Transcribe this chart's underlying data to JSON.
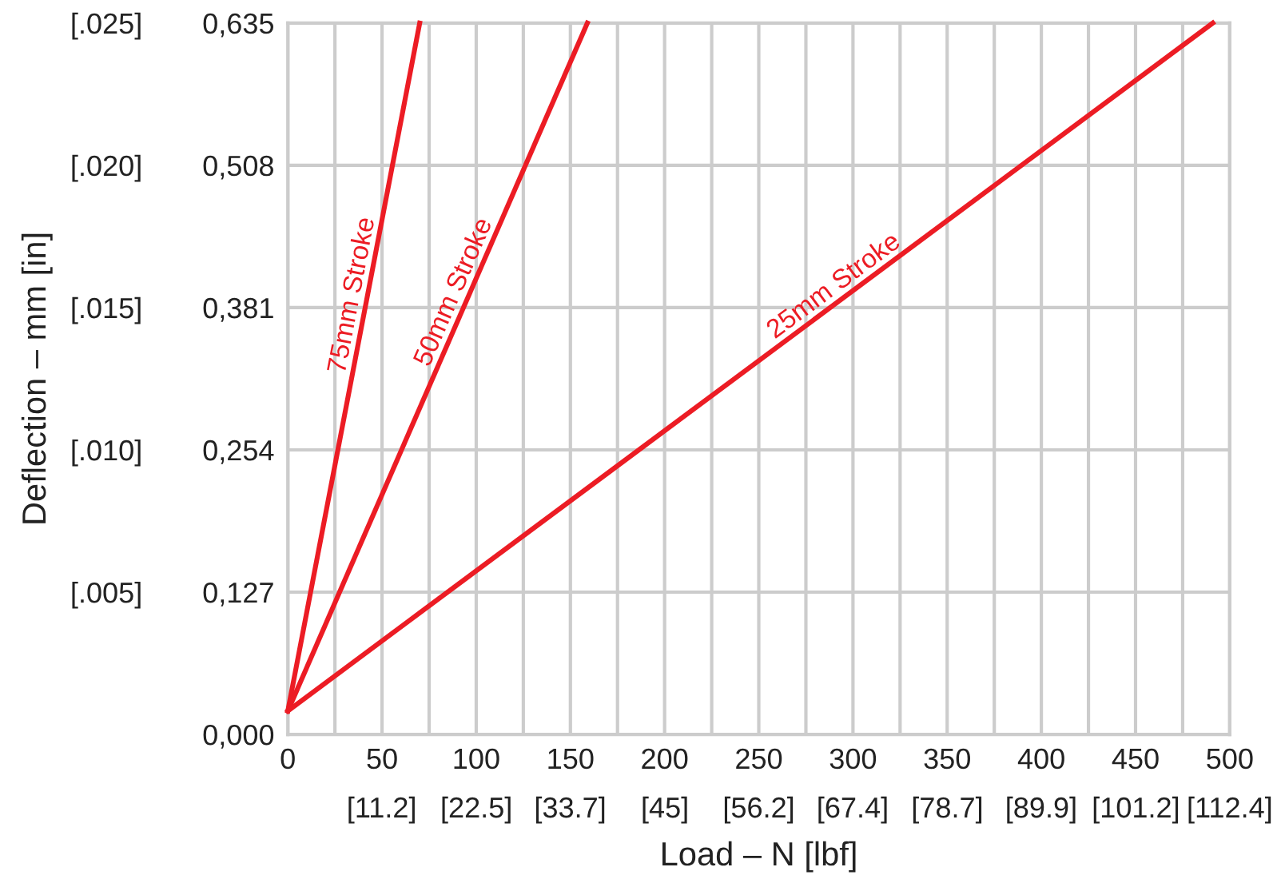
{
  "chart_data": {
    "type": "line",
    "xlabel": "Load – N [lbf]",
    "y2label": "Deflection – mm [in]",
    "series": [
      {
        "name": "75mm Stroke",
        "color": "#ec1c24",
        "x": [
          0,
          70
        ],
        "values": [
          0.021,
          0.635
        ]
      },
      {
        "name": "50mm Stroke",
        "color": "#ec1c24",
        "x": [
          0,
          159
        ],
        "values": [
          0.021,
          0.635
        ]
      },
      {
        "name": "25mm Stroke",
        "color": "#ec1c24",
        "x": [
          0,
          491
        ],
        "values": [
          0.021,
          0.635
        ]
      }
    ],
    "xlim": [
      0,
      500
    ],
    "xticks": [
      0,
      {
        "value": 25,
        "label": null
      },
      50,
      {
        "value": 75,
        "label": null
      },
      100,
      {
        "value": 125,
        "label": null
      },
      150,
      {
        "value": 175,
        "label": null
      },
      200,
      {
        "value": 225,
        "label": null
      },
      250,
      {
        "value": 275,
        "label": null
      },
      300,
      {
        "value": 325,
        "label": null
      },
      350,
      {
        "value": 375,
        "label": null
      },
      400,
      {
        "value": 425,
        "label": null
      },
      450,
      {
        "value": 475,
        "label": null
      },
      500
    ],
    "x2lim": [
      0,
      112.4
    ],
    "x2ticks": [
      {
        "value": 11.2,
        "label": "[11.2]"
      },
      {
        "value": 22.5,
        "label": "[22.5]"
      },
      {
        "value": 33.7,
        "label": "[33.7]"
      },
      {
        "value": 45,
        "label": "[45]"
      },
      {
        "value": 56.2,
        "label": "[56.2]"
      },
      {
        "value": 67.4,
        "label": "[67.4]"
      },
      {
        "value": 78.7,
        "label": "[78.7]"
      },
      {
        "value": 89.9,
        "label": "[89.9]"
      },
      {
        "value": 101.2,
        "label": "[101.2]"
      },
      {
        "value": 112.4,
        "label": "[112.4]"
      }
    ],
    "ylim": [
      0,
      0.635
    ],
    "yticks": [
      {
        "value": 0,
        "label": "0,000"
      },
      {
        "value": 0.127,
        "label": "0,127"
      },
      {
        "value": 0.254,
        "label": "0,254"
      },
      {
        "value": 0.381,
        "label": "0,381"
      },
      {
        "value": 0.508,
        "label": "0,508"
      },
      {
        "value": 0.635,
        "label": "0,635"
      }
    ],
    "y2lim": [
      0,
      0.025
    ],
    "y2ticks": [
      {
        "value": 0.005,
        "label": "[.005]"
      },
      {
        "value": 0.01,
        "label": "[.010]"
      },
      {
        "value": 0.015,
        "label": "[.015]"
      },
      {
        "value": 0.02,
        "label": "[.020]"
      },
      {
        "value": 0.025,
        "label": "[.025]"
      }
    ],
    "grid": true,
    "marker": "none",
    "line_style": "solid"
  }
}
